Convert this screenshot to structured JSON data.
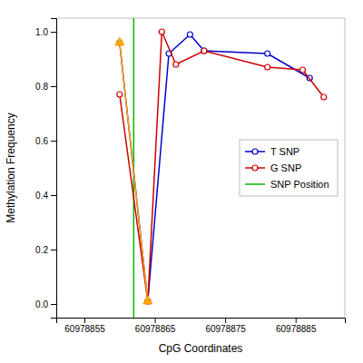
{
  "chart_data": {
    "type": "line",
    "xlabel": "CpG Coordinates",
    "ylabel": "Methylation Frequency",
    "series": [
      {
        "name": "T SNP",
        "color": "#0000CC",
        "marker": "circle",
        "x": [
          60978860,
          60978864,
          60978867,
          60978870,
          60978872,
          60978881,
          60978887
        ],
        "values": [
          0.96,
          0.01,
          0.92,
          0.99,
          0.93,
          0.92,
          0.83
        ]
      },
      {
        "name": "G SNP",
        "color": "#CC0000",
        "marker": "circle",
        "x": [
          60978860,
          60978864,
          60978866,
          60978868,
          60978872,
          60978881,
          60978886,
          60978889
        ],
        "values": [
          0.77,
          0.01,
          1.0,
          0.88,
          0.93,
          0.87,
          0.86,
          0.76
        ]
      },
      {
        "color": "orange",
        "marker": "triangle",
        "x": [
          60978860,
          60978864
        ],
        "values": [
          0.96,
          0.01
        ]
      },
      {
        "name": "SNP Position",
        "type": "vline",
        "color": "#00BB00",
        "x": [
          60978862
        ]
      }
    ],
    "xlim": [
      60978851,
      60978892
    ],
    "ylim": [
      -0.05,
      1.05
    ],
    "xticks": [
      60978855,
      60978865,
      60978875,
      60978885
    ],
    "yticks": [
      {
        "value": 0.0,
        "label": "0.0"
      },
      0.2,
      0.4,
      0.6,
      0.8,
      {
        "value": 1.0,
        "label": "1.0"
      }
    ],
    "grid": false,
    "legend": "right"
  }
}
